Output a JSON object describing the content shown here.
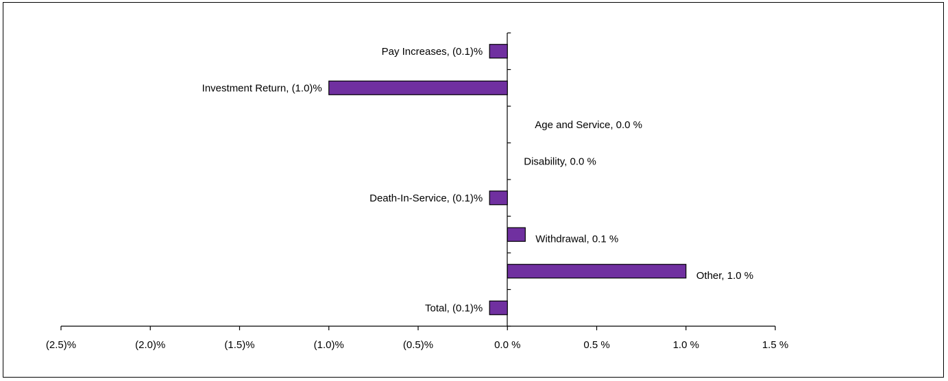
{
  "chart_data": {
    "type": "bar",
    "orientation": "horizontal",
    "categories": [
      "Pay Increases",
      "Investment Return",
      "Age and Service",
      "Disability",
      "Death-In-Service",
      "Withdrawal",
      "Other",
      "Total"
    ],
    "values": [
      -0.1,
      -1.0,
      0.0,
      0.0,
      -0.1,
      0.1,
      1.0,
      -0.1
    ],
    "data_labels": [
      "Pay Increases, (0.1)%",
      "Investment Return, (1.0)%",
      "Age and Service, 0.0 %",
      "Disability, 0.0 %",
      "Death-In-Service, (0.1)%",
      "Withdrawal, 0.1 %",
      "Other, 1.0 %",
      "Total, (0.1)%"
    ],
    "xlim": [
      -2.5,
      1.5
    ],
    "x_tick_values": [
      -2.5,
      -2.0,
      -1.5,
      -1.0,
      -0.5,
      0.0,
      0.5,
      1.0,
      1.5
    ],
    "x_tick_labels": [
      "(2.5)%",
      "(2.0)%",
      "(1.5)%",
      "(1.0)%",
      "(0.5)%",
      "0.0 %",
      "0.5 %",
      "1.0 %",
      "1.5 %"
    ],
    "grid": false,
    "legend": "none",
    "bar_color": "#7030A0",
    "bar_edge_color": "#000000"
  }
}
